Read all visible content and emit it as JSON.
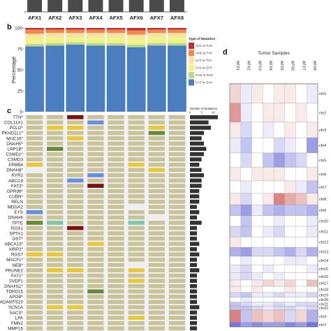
{
  "panel_labels": {
    "b": "b",
    "c": "c",
    "d": "d"
  },
  "chart_data": [
    {
      "type": "bar",
      "panel": "top",
      "categories": [
        "AFX1",
        "AFX2",
        "AFX3",
        "AFX4",
        "AFX5",
        "AFX6",
        "AFX7",
        "AFX8"
      ],
      "colors": {
        "bar": "#4a4a4a"
      }
    },
    {
      "type": "bar",
      "panel": "b",
      "stacked": true,
      "ylabel": "Percentage",
      "ylim": [
        0,
        100
      ],
      "yticks": [
        "0",
        "25",
        "50",
        "75",
        "100"
      ],
      "categories": [
        "AFX1",
        "AFX2",
        "AFX3",
        "AFX4",
        "AFX5",
        "AFX6",
        "AFX7",
        "AFX8"
      ],
      "legend_title": "Type of Mutation",
      "legend_position": "right",
      "series": [
        {
          "name": "C>T or G>A",
          "color": "#4a7ebf",
          "values": [
            78,
            79,
            80,
            79,
            79,
            77,
            79,
            79
          ]
        },
        {
          "name": "C>G or G>C",
          "color": "#b7d98b",
          "values": [
            3,
            3,
            3,
            3,
            3,
            3,
            3,
            3
          ]
        },
        {
          "name": "C>A or G>T",
          "color": "#f2f28a",
          "values": [
            7,
            7,
            6,
            7,
            7,
            7,
            7,
            7
          ]
        },
        {
          "name": "A>T or T>A",
          "color": "#f7e3a6",
          "values": [
            5,
            5,
            5,
            5,
            5,
            5,
            5,
            5
          ]
        },
        {
          "name": "A>G or T>C",
          "color": "#f08a4a",
          "values": [
            5,
            4,
            4,
            4,
            4,
            5,
            4,
            4
          ]
        },
        {
          "name": "A>C or T>G",
          "color": "#c0303a",
          "values": [
            2,
            2,
            2,
            2,
            2,
            3,
            2,
            2
          ]
        }
      ]
    },
    {
      "type": "heatmap",
      "panel": "c",
      "samples": [
        "AFX1",
        "AFX2",
        "AFX3",
        "AFX4",
        "AFX5",
        "AFX6",
        "AFX7",
        "AFX8"
      ],
      "genes": [
        "TTN*",
        "COL11A1",
        "PCLO*",
        "PKHD1L1*",
        "MUC16*",
        "DNAH5*",
        "LRP1B*",
        "CSMD1*",
        "CSMD3",
        "ERBB4",
        "DNAH8*",
        "RYR2",
        "ABCC9",
        "FAT3*",
        "GPR98*",
        "CUBN*",
        "RELN",
        "MDGA2",
        "EYS",
        "DNAH6",
        "TPTE",
        "ROS1",
        "SPTA1",
        "DST*",
        "ABCA13*",
        "XIRP2*",
        "RGS7",
        "MACF1*",
        "NEB*",
        "PRUNE2",
        "FAT1*",
        "SVEP1",
        "DNAH11*",
        "TDRD15",
        "APOB*",
        "ADAMTS20",
        "SCN1A",
        "SACS*",
        "LPA",
        "FMN2",
        "MMP16"
      ],
      "cell_colors": {
        "0": "#c9c39a",
        "1": "#eeeef0",
        "2": "#e8c83a",
        "3": "#6b8ee0",
        "4": "#6a8a3a",
        "5": "#7a1010",
        "6": "#7fc7a8"
      },
      "matrix": [
        [
          0,
          0,
          5,
          0,
          0,
          0,
          0,
          0
        ],
        [
          0,
          0,
          0,
          3,
          0,
          0,
          0,
          0
        ],
        [
          0,
          2,
          2,
          0,
          0,
          0,
          2,
          0
        ],
        [
          0,
          0,
          0,
          0,
          0,
          0,
          4,
          0
        ],
        [
          0,
          0,
          2,
          0,
          0,
          0,
          0,
          0
        ],
        [
          0,
          0,
          0,
          0,
          0,
          0,
          0,
          0
        ],
        [
          0,
          4,
          0,
          0,
          0,
          0,
          0,
          0
        ],
        [
          0,
          0,
          0,
          0,
          0,
          0,
          0,
          0
        ],
        [
          0,
          0,
          0,
          0,
          0,
          0,
          0,
          0
        ],
        [
          2,
          0,
          0,
          0,
          0,
          2,
          0,
          0
        ],
        [
          1,
          0,
          0,
          0,
          0,
          0,
          2,
          0
        ],
        [
          0,
          0,
          0,
          3,
          0,
          0,
          0,
          0
        ],
        [
          0,
          0,
          3,
          0,
          0,
          0,
          0,
          0
        ],
        [
          0,
          0,
          0,
          5,
          0,
          0,
          0,
          0
        ],
        [
          0,
          0,
          0,
          0,
          0,
          0,
          0,
          0
        ],
        [
          0,
          0,
          0,
          0,
          0,
          0,
          0,
          0
        ],
        [
          0,
          0,
          0,
          0,
          0,
          0,
          0,
          0
        ],
        [
          0,
          0,
          0,
          0,
          0,
          1,
          0,
          0
        ],
        [
          3,
          0,
          0,
          0,
          0,
          0,
          0,
          0
        ],
        [
          0,
          0,
          0,
          0,
          0,
          0,
          1,
          0
        ],
        [
          4,
          6,
          0,
          0,
          0,
          6,
          0,
          0
        ],
        [
          0,
          0,
          5,
          0,
          0,
          0,
          0,
          0
        ],
        [
          0,
          0,
          0,
          0,
          0,
          0,
          0,
          0
        ],
        [
          0,
          0,
          0,
          0,
          0,
          0,
          0,
          0
        ],
        [
          0,
          0,
          0,
          2,
          0,
          0,
          0,
          0
        ],
        [
          0,
          0,
          0,
          0,
          0,
          0,
          0,
          0
        ],
        [
          2,
          2,
          0,
          0,
          0,
          0,
          0,
          0
        ],
        [
          0,
          0,
          0,
          0,
          0,
          0,
          0,
          0
        ],
        [
          0,
          0,
          0,
          0,
          0,
          1,
          0,
          0
        ],
        [
          0,
          2,
          2,
          0,
          0,
          2,
          0,
          0
        ],
        [
          0,
          0,
          0,
          0,
          0,
          0,
          0,
          0
        ],
        [
          0,
          0,
          0,
          0,
          0,
          2,
          0,
          0
        ],
        [
          0,
          0,
          0,
          0,
          0,
          0,
          0,
          0
        ],
        [
          0,
          0,
          0,
          4,
          0,
          0,
          0,
          0
        ],
        [
          0,
          0,
          0,
          0,
          0,
          0,
          0,
          0
        ],
        [
          0,
          0,
          0,
          0,
          0,
          0,
          0,
          0
        ],
        [
          0,
          2,
          2,
          0,
          0,
          0,
          0,
          0
        ],
        [
          0,
          0,
          0,
          0,
          0,
          0,
          0,
          0
        ],
        [
          0,
          0,
          0,
          0,
          0,
          2,
          0,
          0
        ],
        [
          0,
          0,
          0,
          0,
          0,
          0,
          0,
          0
        ],
        [
          0,
          0,
          0,
          0,
          0,
          0,
          0,
          0
        ]
      ],
      "side_bar_title": "Number of Mutations",
      "side_bar_ticks": [
        "0",
        "5",
        "10"
      ],
      "side_bar_values": [
        12,
        8,
        9,
        6,
        5,
        6,
        7,
        6,
        5,
        4,
        5,
        6,
        5,
        5,
        4,
        4,
        4,
        3,
        4,
        3,
        5,
        3,
        3,
        3,
        4,
        3,
        4,
        3,
        3,
        4,
        3,
        3,
        3,
        3,
        3,
        3,
        4,
        3,
        3,
        3,
        3
      ]
    },
    {
      "type": "heatmap",
      "panel": "d",
      "title": "Tumor Samples",
      "samples": [
        "AFX1",
        "AFX2",
        "AFX3",
        "AFX4",
        "AFX5",
        "AFX6",
        "AFX7",
        "AFX8"
      ],
      "chromosomes": [
        "chr1",
        "chr2",
        "chr3",
        "chr4",
        "chr5",
        "chr6",
        "chr7",
        "chr8",
        "chr9",
        "chr10",
        "chr11",
        "chr12",
        "chr13",
        "chr14",
        "chr15",
        "chr16",
        "chr17",
        "chr18",
        "chr19",
        "chr20",
        "chr21",
        "chr22",
        "chrX",
        "chrY"
      ],
      "chromosome_weights": [
        8.2,
        8.0,
        6.6,
        6.4,
        6.1,
        5.7,
        5.3,
        4.8,
        4.6,
        4.5,
        4.5,
        4.4,
        3.8,
        3.6,
        3.4,
        3.0,
        2.7,
        2.6,
        2.0,
        2.1,
        1.6,
        1.7,
        5.2,
        1.9
      ],
      "color_scale": {
        "low": "#3a3acc",
        "mid": "#ffffff",
        "high": "#c03030"
      },
      "values": [
        [
          0.2,
          -0.1,
          0.1,
          0.0,
          0.1,
          0.1,
          0.0,
          -0.1
        ],
        [
          0.5,
          -0.1,
          0.0,
          0.1,
          0.1,
          0.0,
          0.1,
          0.0
        ],
        [
          0.1,
          -0.2,
          0.0,
          -0.1,
          0.0,
          0.1,
          0.0,
          0.1
        ],
        [
          -0.1,
          -0.3,
          0.0,
          0.0,
          -0.2,
          -0.1,
          0.0,
          -0.5
        ],
        [
          0.0,
          -0.2,
          0.0,
          -0.3,
          -0.5,
          -0.3,
          -0.2,
          0.0
        ],
        [
          0.1,
          0.0,
          0.1,
          0.1,
          0.1,
          0.0,
          0.0,
          0.1
        ],
        [
          0.0,
          -0.1,
          0.0,
          0.0,
          0.0,
          0.1,
          -0.1,
          -0.3
        ],
        [
          0.1,
          -0.2,
          0.0,
          0.1,
          0.6,
          0.4,
          0.3,
          0.1
        ],
        [
          -0.3,
          -0.5,
          -0.1,
          -0.3,
          -0.4,
          -0.3,
          -0.3,
          -0.4
        ],
        [
          0.0,
          -0.3,
          0.0,
          0.0,
          -0.1,
          0.0,
          0.0,
          -0.1
        ],
        [
          -0.2,
          -0.3,
          0.0,
          -0.1,
          -0.2,
          0.0,
          0.0,
          -0.1
        ],
        [
          0.1,
          0.0,
          0.0,
          0.0,
          0.0,
          0.0,
          0.0,
          0.0
        ],
        [
          -0.4,
          -0.5,
          -0.2,
          -0.2,
          -0.3,
          -0.4,
          -0.2,
          -0.4
        ],
        [
          0.0,
          -0.1,
          0.0,
          0.0,
          0.0,
          -0.1,
          -0.1,
          0.0
        ],
        [
          -0.1,
          -0.2,
          0.0,
          -0.1,
          0.0,
          0.0,
          0.0,
          -0.1
        ],
        [
          -0.1,
          -0.2,
          -0.1,
          0.0,
          -0.1,
          0.0,
          0.0,
          0.0
        ],
        [
          0.1,
          0.0,
          0.1,
          0.2,
          0.1,
          0.2,
          0.0,
          0.3
        ],
        [
          0.1,
          0.0,
          0.1,
          0.0,
          0.0,
          0.1,
          0.0,
          0.0
        ],
        [
          -0.2,
          -0.3,
          -0.1,
          -0.1,
          -0.2,
          -0.1,
          -0.1,
          -0.2
        ],
        [
          0.0,
          -0.1,
          0.0,
          0.0,
          0.0,
          0.0,
          0.0,
          0.0
        ],
        [
          -0.3,
          -0.2,
          -0.1,
          -0.1,
          -0.2,
          -0.1,
          -0.2,
          -0.2
        ],
        [
          -0.3,
          -0.3,
          -0.2,
          -0.1,
          -0.2,
          -0.2,
          -0.1,
          -0.2
        ],
        [
          0.6,
          -0.3,
          0.3,
          0.2,
          0.3,
          -0.2,
          0.2,
          -0.4
        ],
        [
          -0.7,
          -0.5,
          -0.6,
          -0.5,
          -0.5,
          -0.6,
          -0.5,
          -0.7
        ]
      ]
    }
  ]
}
